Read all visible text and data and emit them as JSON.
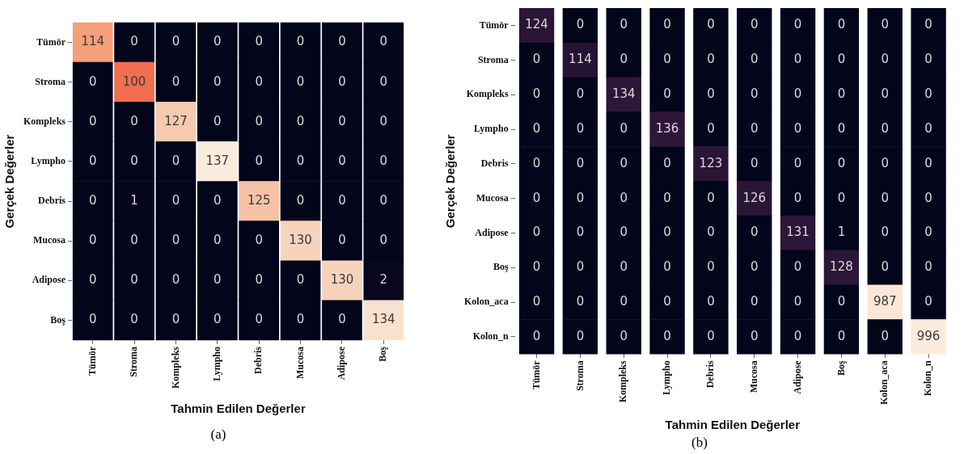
{
  "chart_data": [
    {
      "type": "heatmap",
      "xlabel": "Tahmin Edilen Değerler",
      "ylabel": "Gerçek Değerler",
      "annotations": [
        "(a)"
      ],
      "data_labels": true,
      "categories": [
        "Tümör",
        "Stroma",
        "Kompleks",
        "Lympho",
        "Debris",
        "Mucosa",
        "Adipose",
        "Boş"
      ],
      "y_categories": [
        "Tümör",
        "Stroma",
        "Kompleks",
        "Lympho",
        "Debris",
        "Mucosa",
        "Adipose",
        "Boş"
      ],
      "cells": [
        [
          114,
          0,
          0,
          0,
          0,
          0,
          0,
          0
        ],
        [
          0,
          100,
          0,
          0,
          0,
          0,
          0,
          0
        ],
        [
          0,
          0,
          127,
          0,
          0,
          0,
          0,
          0
        ],
        [
          0,
          0,
          0,
          137,
          0,
          0,
          0,
          0
        ],
        [
          0,
          1,
          0,
          0,
          125,
          0,
          0,
          0
        ],
        [
          0,
          0,
          0,
          0,
          0,
          130,
          0,
          0
        ],
        [
          0,
          0,
          0,
          0,
          0,
          0,
          130,
          2
        ],
        [
          0,
          0,
          0,
          0,
          0,
          0,
          0,
          134
        ]
      ]
    },
    {
      "type": "heatmap",
      "xlabel": "Tahmin Edilen Değerler",
      "ylabel": "Gerçek Değerler",
      "annotations": [
        "(b)"
      ],
      "data_labels": true,
      "categories": [
        "Tümör",
        "Stroma",
        "Kompleks",
        "Lympho",
        "Debris",
        "Mucosa",
        "Adipose",
        "Boş",
        "Kolon_aca",
        "Kolon_n"
      ],
      "y_categories": [
        "Tümör",
        "Stroma",
        "Kompleks",
        "Lympho",
        "Debris",
        "Mucosa",
        "Adipose",
        "Boş",
        "Kolon_aca",
        "Kolon_n"
      ],
      "cells": [
        [
          124,
          0,
          0,
          0,
          0,
          0,
          0,
          0,
          0,
          0
        ],
        [
          0,
          114,
          0,
          0,
          0,
          0,
          0,
          0,
          0,
          0
        ],
        [
          0,
          0,
          134,
          0,
          0,
          0,
          0,
          0,
          0,
          0
        ],
        [
          0,
          0,
          0,
          136,
          0,
          0,
          0,
          0,
          0,
          0
        ],
        [
          0,
          0,
          0,
          0,
          123,
          0,
          0,
          0,
          0,
          0
        ],
        [
          0,
          0,
          0,
          0,
          0,
          126,
          0,
          0,
          0,
          0
        ],
        [
          0,
          0,
          0,
          0,
          0,
          0,
          131,
          1,
          0,
          0
        ],
        [
          0,
          0,
          0,
          0,
          0,
          0,
          0,
          128,
          0,
          0
        ],
        [
          0,
          0,
          0,
          0,
          0,
          0,
          0,
          0,
          987,
          0
        ],
        [
          0,
          0,
          0,
          0,
          0,
          0,
          0,
          0,
          0,
          996
        ]
      ]
    }
  ]
}
